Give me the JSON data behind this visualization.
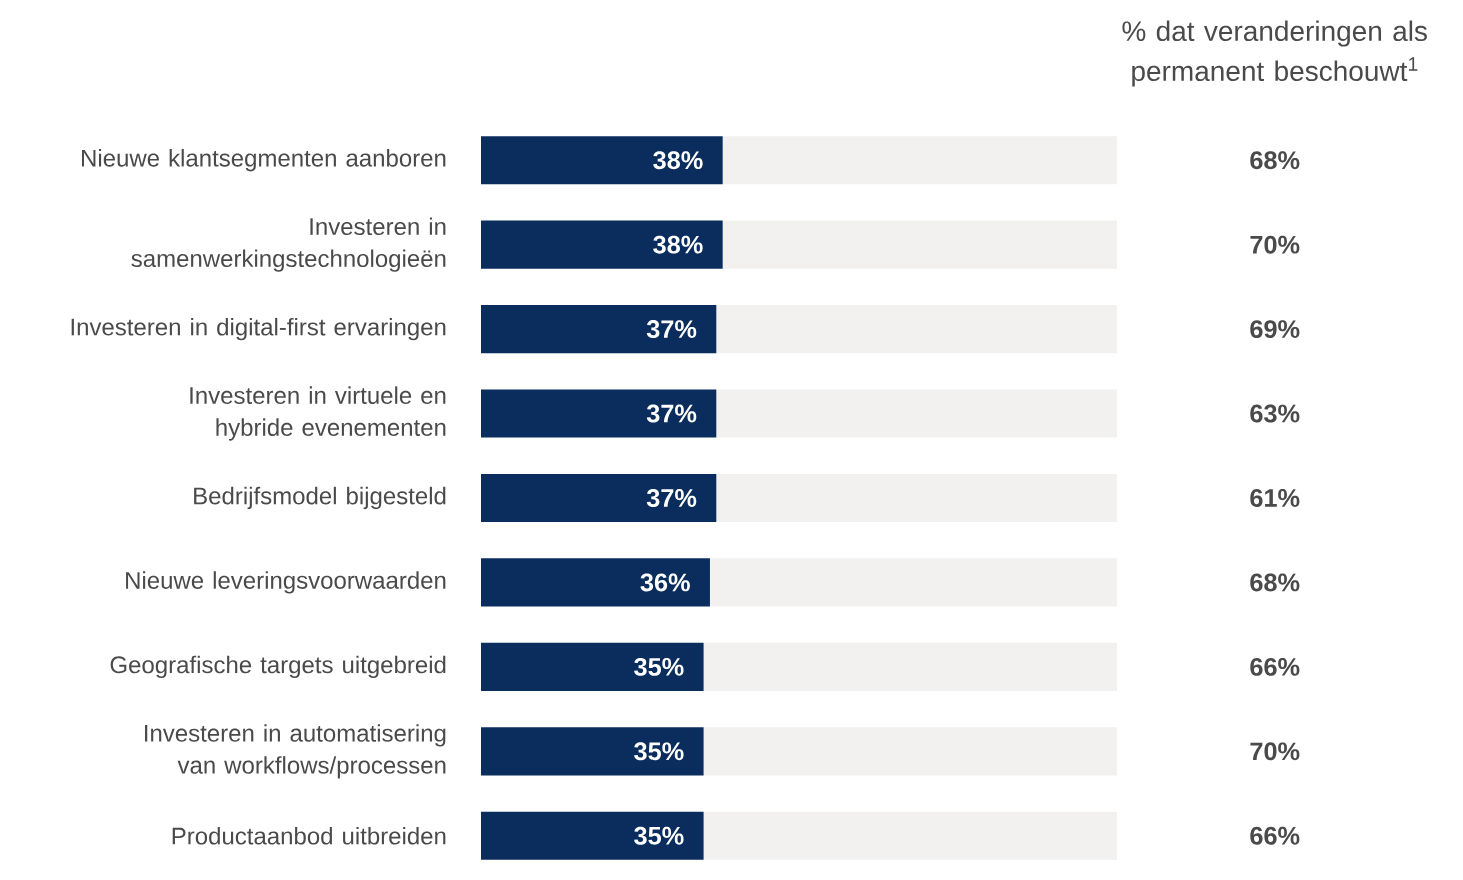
{
  "chart_data": {
    "type": "bar",
    "orientation": "horizontal",
    "stacked": true,
    "tick_labels": "y",
    "categories": [
      "Nieuwe klantsegmenten aanboren",
      "Investeren in samenwerkingstechnologieën",
      "Investeren in digital-first ervaringen",
      "Investeren in virtuele en hybride evenementen",
      "Bedrijfsmodel bijgesteld",
      "Nieuwe leveringsvoorwaarden",
      "Geografische targets uitgebreid",
      "Investeren in automatisering van workflows/processen",
      "Productaanbod uitbreiden"
    ],
    "series": [
      {
        "color": "#0a2d5e",
        "values": [
          38,
          38,
          37,
          37,
          37,
          36,
          35,
          35,
          35
        ],
        "value_labels": [
          "38%",
          "38%",
          "37%",
          "37%",
          "37%",
          "36%",
          "35%",
          "35%",
          "35%"
        ]
      },
      {
        "color": "#f2f1f0",
        "values": [
          62,
          62,
          63,
          63,
          63,
          64,
          65,
          65,
          65
        ]
      }
    ],
    "annotations": [
      "% dat veranderingen als permanent beschouwt$^{1}$",
      "68%",
      "70%",
      "69%",
      "63%",
      "61%",
      "68%",
      "66%",
      "70%",
      "66%"
    ]
  }
}
